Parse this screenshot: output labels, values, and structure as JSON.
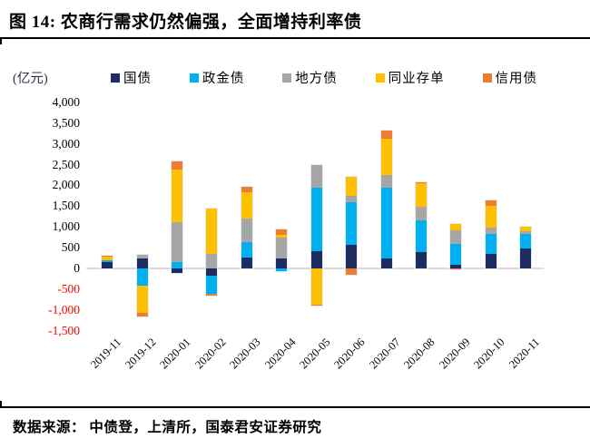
{
  "figure": {
    "title": "图 14:  农商行需求仍然偏强，全面增持利率债"
  },
  "unit_label": "(亿元)",
  "source_note": "数据来源：  中债登，上清所，国泰君安证券研究",
  "colors": {
    "accent_navy": "#1F2C5F",
    "accent_blue": "#00B0F0",
    "accent_gray": "#A6A6A6",
    "accent_yellow": "#FFC000",
    "accent_orange": "#ED7D31",
    "negative_label": "#FF0000",
    "zero_line": "#D9D9D9",
    "rule": "#000000"
  },
  "chart_data": {
    "type": "bar",
    "stacked": true,
    "title": "农商行需求仍然偏强，全面增持利率债",
    "ylabel": "(亿元)",
    "ylim": [
      -1500,
      4000
    ],
    "ytick_step": 500,
    "grid": "zero-line-only",
    "legend_position": "top",
    "categories": [
      "2019-11",
      "2019-12",
      "2020-01",
      "2020-02",
      "2020-03",
      "2020-04",
      "2020-05",
      "2020-06",
      "2020-07",
      "2020-08",
      "2020-09",
      "2020-10",
      "2020-11"
    ],
    "series": [
      {
        "name": "国债",
        "color": "#1F2C5F",
        "values": [
          150,
          250,
          -100,
          -170,
          270,
          240,
          420,
          570,
          250,
          400,
          90,
          350,
          470
        ]
      },
      {
        "name": "政金债",
        "color": "#00B0F0",
        "values": [
          40,
          -420,
          150,
          -440,
          370,
          -70,
          1530,
          1020,
          1700,
          750,
          500,
          470,
          350
        ]
      },
      {
        "name": "地方债",
        "color": "#A6A6A6",
        "values": [
          0,
          80,
          970,
          350,
          570,
          500,
          550,
          160,
          300,
          330,
          330,
          160,
          70
        ]
      },
      {
        "name": "同业存单",
        "color": "#FFC000",
        "values": [
          100,
          -650,
          1270,
          1090,
          620,
          60,
          -870,
          450,
          880,
          570,
          150,
          520,
          110
        ]
      },
      {
        "name": "信用债",
        "color": "#ED7D31",
        "values": [
          20,
          -90,
          180,
          -40,
          130,
          150,
          -30,
          -150,
          190,
          30,
          -30,
          130,
          0
        ]
      }
    ]
  }
}
